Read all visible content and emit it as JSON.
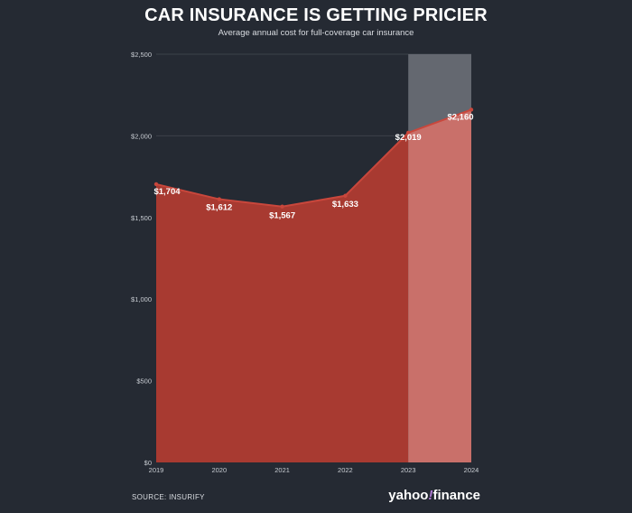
{
  "header": {
    "title": "CAR INSURANCE IS GETTING PRICIER",
    "subtitle": "Average annual cost for full-coverage car insurance"
  },
  "footer": {
    "source": "SOURCE: INSURIFY",
    "logo_left": "yahoo",
    "logo_bang": "!",
    "logo_right": "finance"
  },
  "colors": {
    "background": "#252a33",
    "area_fill": "#a83a31",
    "line": "#c9473c",
    "projection_fill": "#c9706a",
    "projection_band": "#676c74",
    "gridline": "#3c414a",
    "label_color": "#ffffff",
    "axis_text": "#c8ccd2"
  },
  "chart_data": {
    "type": "area",
    "title": "CAR INSURANCE IS GETTING PRICIER",
    "subtitle": "Average annual cost for full-coverage car insurance",
    "xlabel": "",
    "ylabel": "",
    "x": [
      "2019",
      "2020",
      "2021",
      "2022",
      "2023",
      "2024"
    ],
    "x_tick_labels": [
      "2019",
      "2020",
      "2021",
      "2022",
      "2023",
      "2024"
    ],
    "series": [
      {
        "name": "Average annual cost",
        "values": [
          1704,
          1612,
          1567,
          1633,
          2019,
          2160
        ],
        "labels": [
          "$1,704",
          "$1,612",
          "$1,567",
          "$1,633",
          "$2,019",
          "$2,160"
        ]
      }
    ],
    "projection_range": [
      "2023",
      "2024"
    ],
    "ylim": [
      0,
      2500
    ],
    "y_ticks": [
      0,
      500,
      1000,
      1500,
      2000,
      2500
    ],
    "y_tick_labels": [
      "$0",
      "$500",
      "$1,000",
      "$1,500",
      "$2,000",
      "$2,500"
    ],
    "grid": true,
    "legend": "none"
  }
}
